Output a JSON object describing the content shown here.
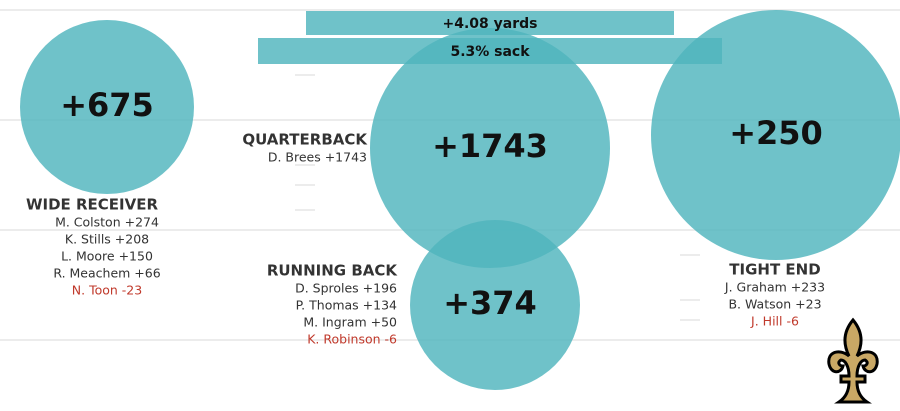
{
  "banners": [
    "+4.08 yards",
    "5.3% sack"
  ],
  "bubble_color": "#4fb5bd",
  "positions": [
    {
      "name": "WIDE RECEIVER",
      "total": 675,
      "total_label": "+675",
      "players": [
        {
          "text": "M. Colston +274",
          "color": "#333333"
        },
        {
          "text": "K. Stills +208",
          "color": "#333333"
        },
        {
          "text": "L. Moore +150",
          "color": "#333333"
        },
        {
          "text": "R. Meachem +66",
          "color": "#333333"
        },
        {
          "text": "N. Toon -23",
          "color": "#c0392b"
        }
      ]
    },
    {
      "name": "QUARTERBACK",
      "total": 1743,
      "total_label": "+1743",
      "players": [
        {
          "text": "D. Brees +1743",
          "color": "#333333"
        }
      ]
    },
    {
      "name": "TIGHT END",
      "total": 250,
      "total_label": "+250",
      "players": [
        {
          "text": "J. Graham +233",
          "color": "#333333"
        },
        {
          "text": "B. Watson +23",
          "color": "#333333"
        },
        {
          "text": "J. Hill -6",
          "color": "#c0392b"
        }
      ]
    },
    {
      "name": "RUNNING BACK",
      "total": 374,
      "total_label": "+374",
      "players": [
        {
          "text": "D. Sproles +196",
          "color": "#333333"
        },
        {
          "text": "P. Thomas +134",
          "color": "#333333"
        },
        {
          "text": "M. Ingram +50",
          "color": "#333333"
        },
        {
          "text": "K. Robinson -6",
          "color": "#c0392b"
        }
      ]
    }
  ]
}
